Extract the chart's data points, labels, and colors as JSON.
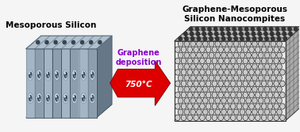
{
  "title_left": "Mesoporous Silicon",
  "title_right": "Graphene-Mesoporous\nSilicon Nanocompites",
  "arrow_label": "Graphene\ndeposition",
  "arrow_temp": "750°C",
  "bg_color": "#f5f5f5",
  "title_left_color": "#000000",
  "title_right_color": "#000000",
  "arrow_label_color": "#8800cc",
  "arrow_color": "#dd0000",
  "arrow_temp_color": "#ffffff",
  "figsize": [
    3.78,
    1.67
  ],
  "dpi": 100
}
